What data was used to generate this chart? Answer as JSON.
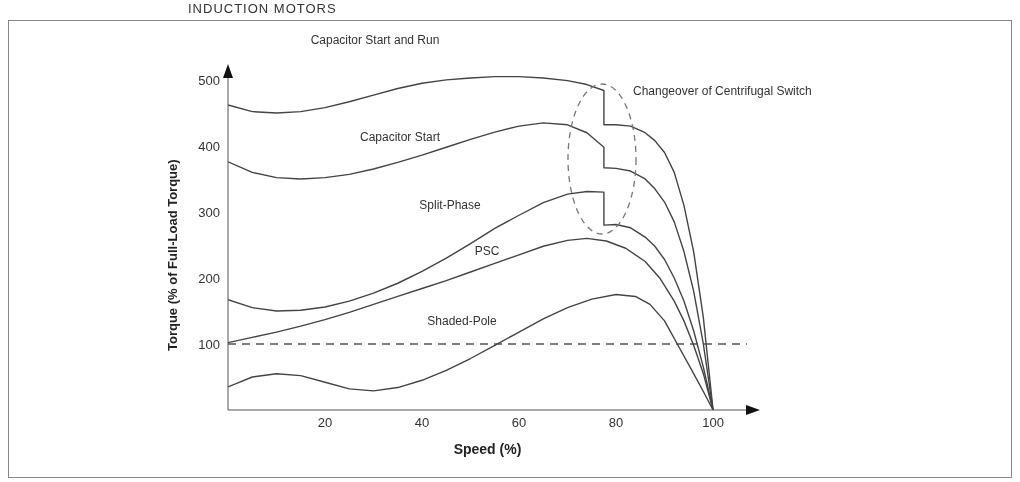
{
  "chart_data": {
    "type": "line",
    "title": "INDUCTION MOTORS",
    "xlabel": "Speed (%)",
    "ylabel": "Torque (% of Full-Load Torque)",
    "xlim": [
      0,
      107
    ],
    "ylim": [
      0,
      512
    ],
    "xticks": [
      20,
      40,
      60,
      80,
      100
    ],
    "yticks": [
      100,
      200,
      300,
      400,
      500
    ],
    "grid": false,
    "legend": false,
    "marker": "none",
    "line_style": "solid",
    "ref_lines": [
      {
        "axis": "y",
        "value": 100,
        "color": "#555555",
        "line_style": "dashed"
      }
    ],
    "annotations": [
      "Changeover of Centrifugal Switch"
    ],
    "series": [
      {
        "name": "Capacitor Start and Run",
        "color": "#444444",
        "x": [
          0,
          5,
          10,
          15,
          20,
          25,
          30,
          35,
          40,
          45,
          50,
          55,
          60,
          65,
          70,
          74,
          77.5,
          77.5,
          80,
          83,
          86,
          88,
          90,
          92,
          94,
          96,
          98,
          100
        ],
        "values": [
          462,
          452,
          450,
          452,
          458,
          467,
          477,
          487,
          495,
          500,
          503,
          505,
          505,
          503,
          499,
          493,
          484,
          432,
          432,
          430,
          420,
          408,
          390,
          360,
          310,
          240,
          140,
          0
        ]
      },
      {
        "name": "Capacitor Start",
        "color": "#444444",
        "x": [
          0,
          5,
          10,
          15,
          20,
          25,
          30,
          35,
          40,
          45,
          50,
          55,
          60,
          65,
          70,
          74,
          77.5,
          77.5,
          80,
          83,
          86,
          88,
          90,
          92,
          94,
          96,
          98,
          100
        ],
        "values": [
          376,
          360,
          352,
          350,
          352,
          357,
          365,
          375,
          386,
          398,
          410,
          421,
          430,
          435,
          432,
          420,
          398,
          367,
          366,
          362,
          350,
          335,
          315,
          285,
          240,
          180,
          100,
          0
        ]
      },
      {
        "name": "Split-Phase",
        "color": "#444444",
        "x": [
          0,
          5,
          10,
          15,
          20,
          25,
          30,
          35,
          40,
          45,
          50,
          55,
          60,
          65,
          70,
          74,
          77.5,
          77.5,
          80,
          83,
          86,
          88,
          90,
          92,
          94,
          96,
          98,
          100
        ],
        "values": [
          167,
          155,
          150,
          151,
          156,
          165,
          177,
          192,
          210,
          230,
          252,
          275,
          295,
          314,
          327,
          331,
          330,
          280,
          281,
          276,
          262,
          248,
          228,
          200,
          165,
          120,
          65,
          0
        ]
      },
      {
        "name": "PSC",
        "color": "#444444",
        "x": [
          0,
          5,
          10,
          15,
          20,
          25,
          30,
          35,
          40,
          45,
          50,
          55,
          60,
          65,
          70,
          74,
          78,
          82,
          86,
          89,
          92,
          94,
          96,
          98,
          100
        ],
        "values": [
          102,
          110,
          118,
          127,
          137,
          148,
          160,
          172,
          184,
          196,
          209,
          222,
          235,
          248,
          257,
          260,
          256,
          245,
          225,
          200,
          165,
          135,
          98,
          55,
          0
        ]
      },
      {
        "name": "Shaded-Pole",
        "color": "#444444",
        "x": [
          0,
          5,
          10,
          15,
          20,
          25,
          30,
          35,
          40,
          45,
          50,
          55,
          60,
          65,
          70,
          75,
          80,
          84,
          87,
          90,
          93,
          96,
          98,
          100
        ],
        "values": [
          35,
          50,
          55,
          52,
          42,
          32,
          29,
          34,
          45,
          60,
          78,
          98,
          118,
          138,
          155,
          168,
          175,
          172,
          160,
          135,
          95,
          55,
          28,
          0
        ]
      }
    ]
  }
}
